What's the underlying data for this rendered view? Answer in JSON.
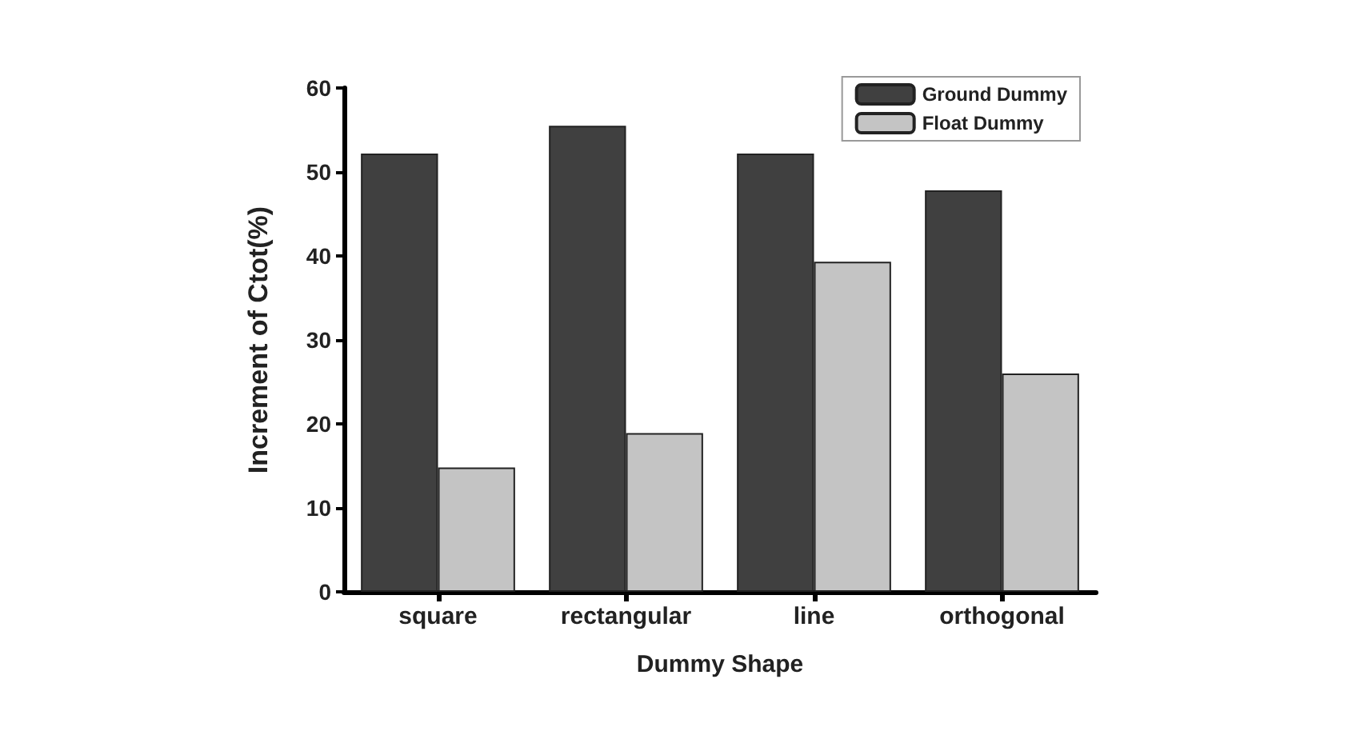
{
  "chart_data": {
    "type": "bar",
    "xlabel": "Dummy Shape",
    "ylabel": "Increment of Ctot(%)",
    "categories": [
      "square",
      "rectangular",
      "line",
      "orthogonal"
    ],
    "series": [
      {
        "name": "Ground Dummy",
        "color": "#404040",
        "values": [
          52.2,
          55.5,
          52.2,
          47.8
        ]
      },
      {
        "name": "Float Dummy",
        "color": "#c4c4c4",
        "values": [
          14.8,
          18.9,
          39.3,
          26
        ]
      }
    ],
    "ylim": [
      0,
      60
    ],
    "yticks": [
      0,
      10,
      20,
      30,
      40,
      50,
      60
    ],
    "grid": false,
    "legend": "top right"
  }
}
